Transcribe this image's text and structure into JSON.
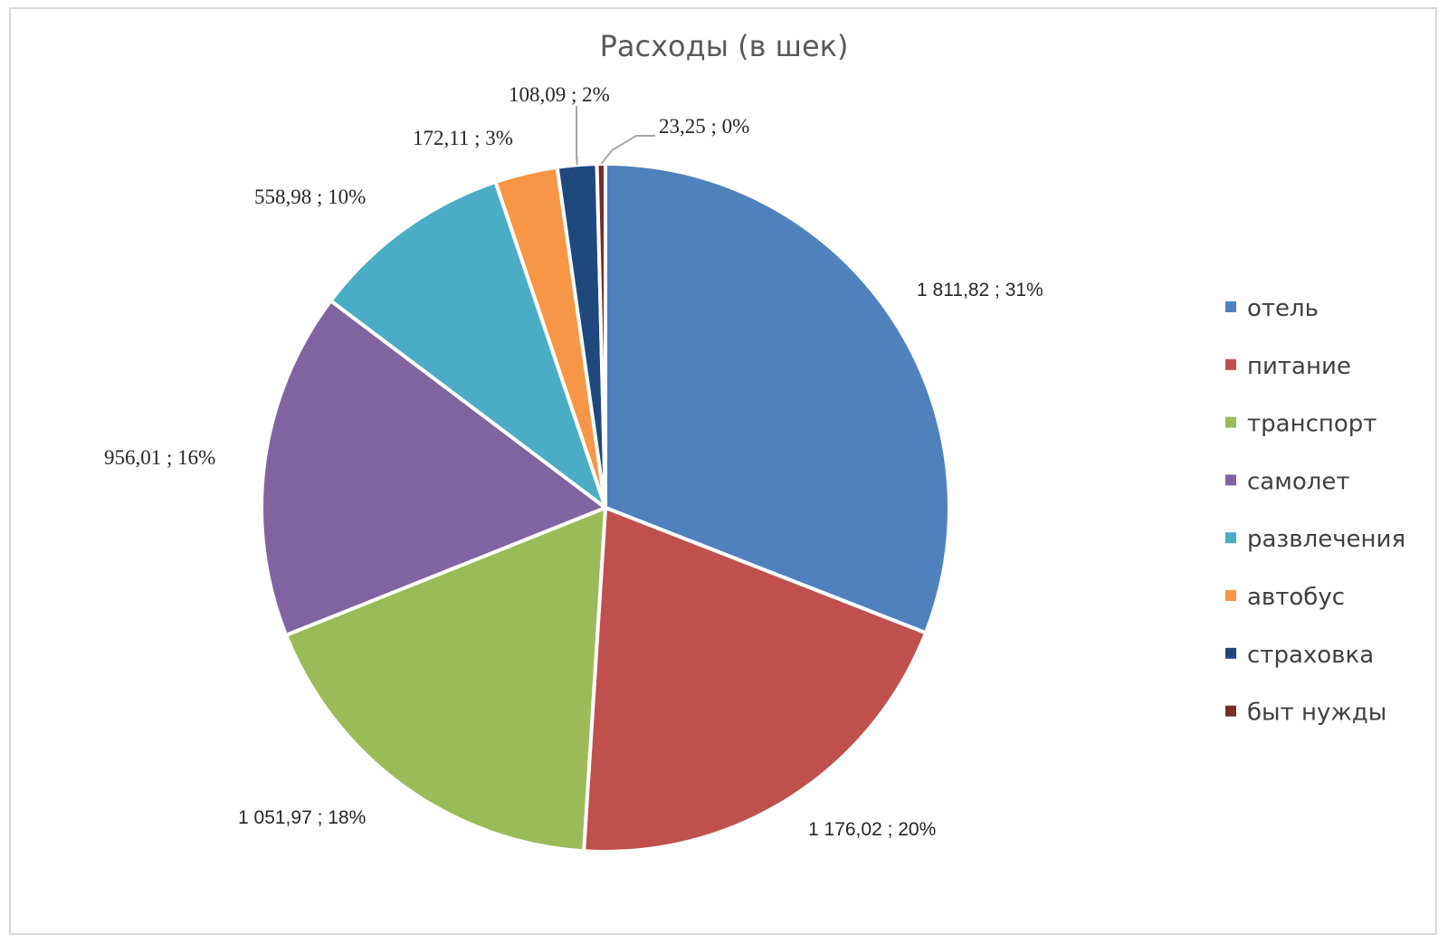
{
  "chart_data": {
    "type": "pie",
    "title": "Расходы (в шек)",
    "start_angle_deg": 0,
    "direction": "clockwise",
    "legend_position": "right",
    "slices": [
      {
        "name": "отель",
        "value": 1811.82,
        "label": "1 811,82 ; 31%",
        "color": "#4F81BD"
      },
      {
        "name": "питание",
        "value": 1176.02,
        "label": "1 176,02 ; 20%",
        "color": "#C0504D"
      },
      {
        "name": "транспорт",
        "value": 1051.97,
        "label": "1 051,97 ; 18%",
        "color": "#9BBB59"
      },
      {
        "name": "самолет",
        "value": 956.01,
        "label": "956,01 ; 16%",
        "color": "#8064A2"
      },
      {
        "name": "развлечения",
        "value": 558.98,
        "label": "558,98 ; 10%",
        "color": "#4BACC6"
      },
      {
        "name": "автобус",
        "value": 172.11,
        "label": "172,11 ; 3%",
        "color": "#F79646"
      },
      {
        "name": "страховка",
        "value": 108.09,
        "label": "108,09 ; 2%",
        "color": "#1F497D"
      },
      {
        "name": "быт нужды",
        "value": 23.25,
        "label": "23,25 ; 0%",
        "color": "#772C2A"
      }
    ]
  }
}
